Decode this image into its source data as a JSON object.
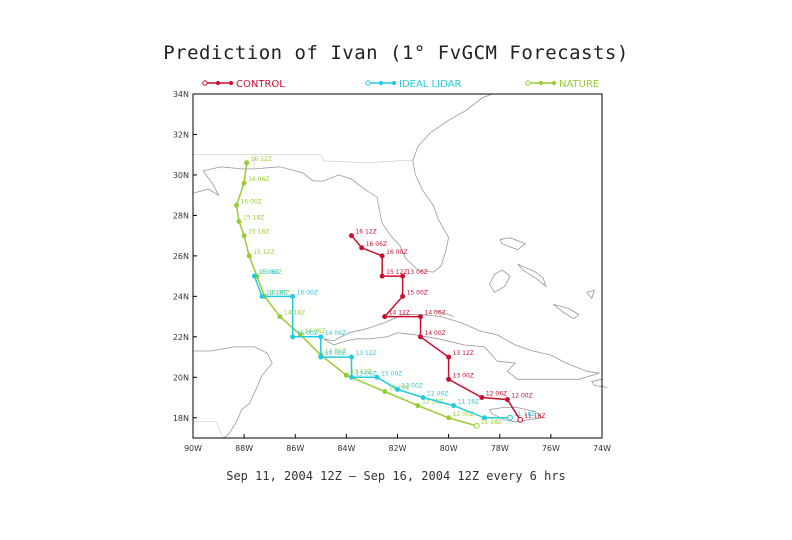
{
  "title": "Prediction of Ivan (1° FvGCM Forecasts)",
  "footer": "Sep 11, 2004 12Z  —  Sep 16, 2004 12Z every 6 hrs",
  "colors": {
    "control": "#c8102e",
    "lidar": "#22ccdd",
    "nature": "#99cc33",
    "coast": "#999999",
    "frame": "#000000"
  },
  "map": {
    "lon_range": [
      -90,
      -74
    ],
    "lat_range": [
      17,
      34
    ],
    "x_ticks": [
      {
        "lon": -90,
        "label": "90W"
      },
      {
        "lon": -88,
        "label": "88W"
      },
      {
        "lon": -86,
        "label": "86W"
      },
      {
        "lon": -84,
        "label": "84W"
      },
      {
        "lon": -82,
        "label": "82W"
      },
      {
        "lon": -80,
        "label": "80W"
      },
      {
        "lon": -78,
        "label": "78W"
      },
      {
        "lon": -76,
        "label": "76W"
      },
      {
        "lon": -74,
        "label": "74W"
      }
    ],
    "y_ticks": [
      {
        "lat": 18,
        "label": "18N"
      },
      {
        "lat": 20,
        "label": "20N"
      },
      {
        "lat": 22,
        "label": "22N"
      },
      {
        "lat": 24,
        "label": "24N"
      },
      {
        "lat": 26,
        "label": "26N"
      },
      {
        "lat": 28,
        "label": "28N"
      },
      {
        "lat": 30,
        "label": "30N"
      },
      {
        "lat": 32,
        "label": "32N"
      },
      {
        "lat": 34,
        "label": "34N"
      }
    ]
  },
  "legend": [
    {
      "key": "control",
      "label": "CONTROL"
    },
    {
      "key": "lidar",
      "label": "IDEAL LIDAR"
    },
    {
      "key": "nature",
      "label": "NATURE"
    }
  ],
  "tracks": {
    "control": [
      {
        "lon": -77.2,
        "lat": 17.9,
        "label": "11 18Z"
      },
      {
        "lon": -77.7,
        "lat": 18.9,
        "label": "12 00Z"
      },
      {
        "lon": -78.7,
        "lat": 19.0,
        "label": "12 06Z"
      },
      {
        "lon": -80.0,
        "lat": 19.9,
        "label": "13 00Z"
      },
      {
        "lon": -80.0,
        "lat": 21.0,
        "label": "13 12Z"
      },
      {
        "lon": -81.1,
        "lat": 22.0,
        "label": "14 00Z"
      },
      {
        "lon": -81.1,
        "lat": 23.0,
        "label": "14 06Z"
      },
      {
        "lon": -82.5,
        "lat": 23.0,
        "label": "14 12Z"
      },
      {
        "lon": -81.8,
        "lat": 24.0,
        "label": "15 00Z"
      },
      {
        "lon": -81.8,
        "lat": 25.0,
        "label": "13 06Z"
      },
      {
        "lon": -82.6,
        "lat": 25.0,
        "label": "15 12Z"
      },
      {
        "lon": -82.6,
        "lat": 26.0,
        "label": "16 00Z"
      },
      {
        "lon": -83.4,
        "lat": 26.4,
        "label": "16 06Z"
      },
      {
        "lon": -83.8,
        "lat": 27.0,
        "label": "16 12Z"
      }
    ],
    "lidar": [
      {
        "lon": -77.6,
        "lat": 18.0,
        "label": "11 18Z"
      },
      {
        "lon": -78.6,
        "lat": 18.0,
        "label": ""
      },
      {
        "lon": -79.8,
        "lat": 18.6,
        "label": "11 18Z"
      },
      {
        "lon": -81.0,
        "lat": 19.0,
        "label": "12 06Z"
      },
      {
        "lon": -82.0,
        "lat": 19.4,
        "label": "12 00Z"
      },
      {
        "lon": -82.8,
        "lat": 20.0,
        "label": "13 00Z"
      },
      {
        "lon": -83.8,
        "lat": 20.0,
        "label": "13 06Z"
      },
      {
        "lon": -83.8,
        "lat": 21.0,
        "label": "13 12Z"
      },
      {
        "lon": -85.0,
        "lat": 21.0,
        "label": "14 00Z"
      },
      {
        "lon": -85.0,
        "lat": 22.0,
        "label": "14 06Z"
      },
      {
        "lon": -86.1,
        "lat": 22.0,
        "label": "15 00Z"
      },
      {
        "lon": -86.1,
        "lat": 24.0,
        "label": "16 00Z"
      },
      {
        "lon": -87.3,
        "lat": 24.0,
        "label": "14 18Z"
      },
      {
        "lon": -87.6,
        "lat": 25.0,
        "label": "15 06Z"
      }
    ],
    "nature": [
      {
        "lon": -78.9,
        "lat": 17.6,
        "label": "11 18Z"
      },
      {
        "lon": -80.0,
        "lat": 18.0,
        "label": "12 00Z"
      },
      {
        "lon": -81.2,
        "lat": 18.6,
        "label": "12 18Z"
      },
      {
        "lon": -82.5,
        "lat": 19.3,
        "label": "13 00Z"
      },
      {
        "lon": -84.0,
        "lat": 20.1,
        "label": "13 12Z"
      },
      {
        "lon": -85.0,
        "lat": 21.1,
        "label": "14 00Z"
      },
      {
        "lon": -85.8,
        "lat": 22.1,
        "label": "14 06Z"
      },
      {
        "lon": -86.6,
        "lat": 23.0,
        "label": "14 18Z"
      },
      {
        "lon": -87.2,
        "lat": 24.0,
        "label": "15 00Z"
      },
      {
        "lon": -87.5,
        "lat": 25.0,
        "label": "15 06Z"
      },
      {
        "lon": -87.8,
        "lat": 26.0,
        "label": "15 12Z"
      },
      {
        "lon": -88.0,
        "lat": 27.0,
        "label": "15 18Z"
      },
      {
        "lon": -88.2,
        "lat": 27.7,
        "label": "15 18Z"
      },
      {
        "lon": -88.3,
        "lat": 28.5,
        "label": "16 00Z"
      },
      {
        "lon": -88.0,
        "lat": 29.6,
        "label": "16 06Z"
      },
      {
        "lon": -87.9,
        "lat": 30.6,
        "label": "16 12Z"
      }
    ]
  }
}
